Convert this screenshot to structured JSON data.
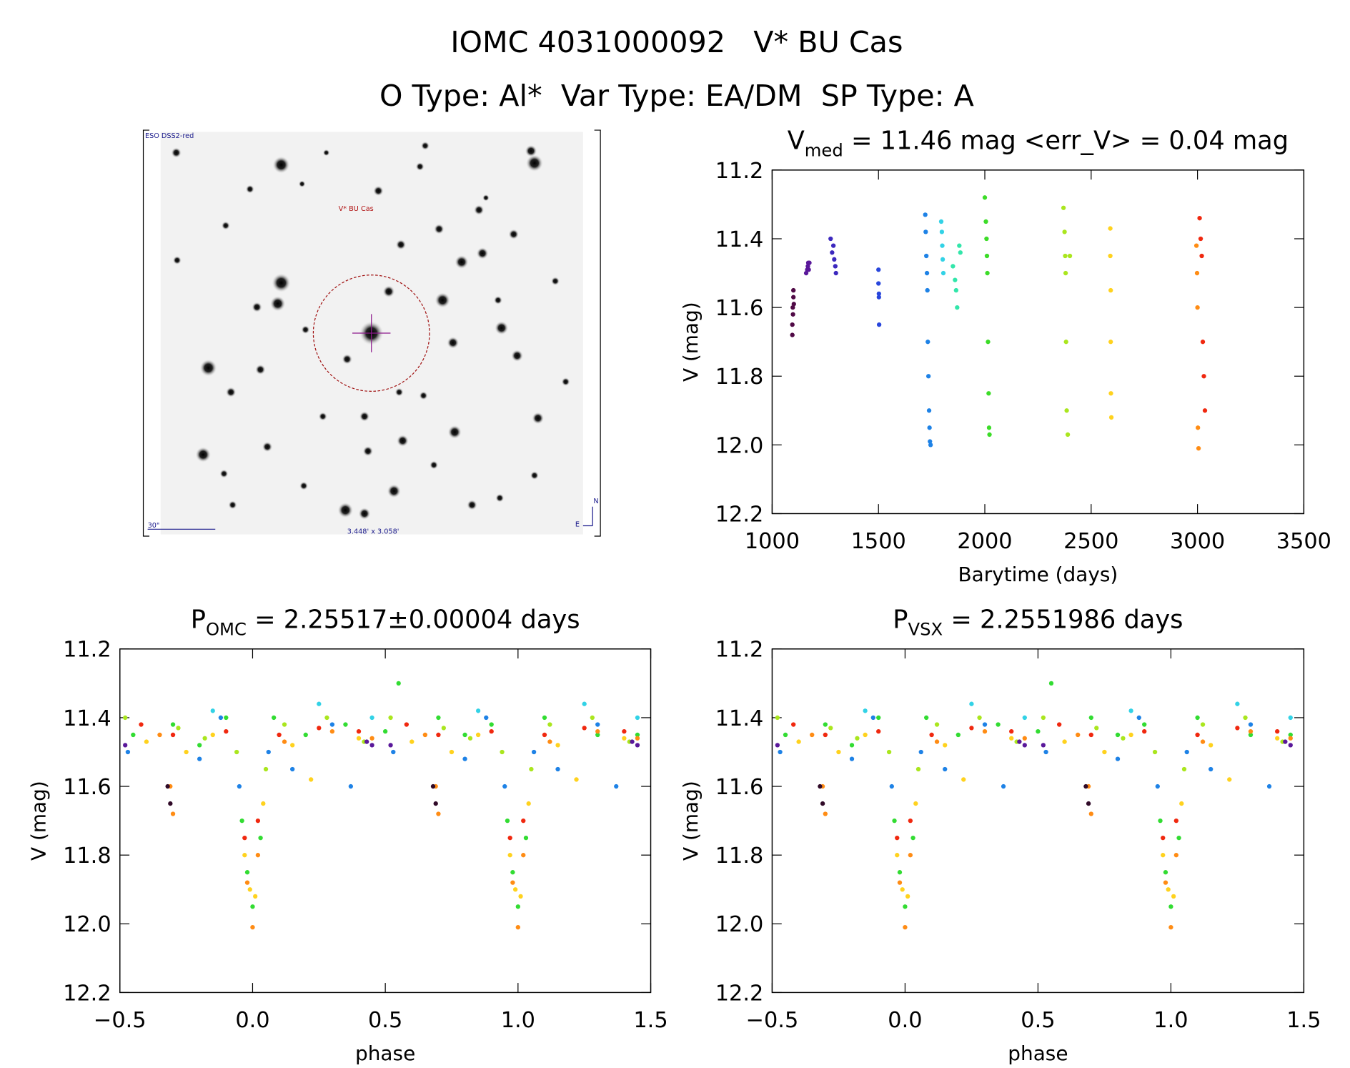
{
  "header": {
    "title": "IOMC 4031000092   V* BU Cas",
    "subtitle": "O Type: Al*  Var Type: EA/DM  SP Type: A"
  },
  "image": {
    "survey": "ESO DSS2-red",
    "target": "V* BU Cas",
    "scale": "30\"",
    "field": "3.448' x 3.058'",
    "north": "N",
    "east": "E"
  },
  "chart_data": [
    {
      "type": "scatter",
      "title": {
        "main": "V",
        "sub": "med",
        "rest": " = 11.46 mag <err_V> = 0.04 mag"
      },
      "xlabel": "Barytime (days)",
      "ylabel": "V (mag)",
      "xlim": [
        1000,
        3500
      ],
      "xticks": [
        1000,
        1500,
        2000,
        2500,
        3000,
        3500
      ],
      "ylim": [
        11.2,
        12.2
      ],
      "y_reversed": true,
      "yticks": [
        11.2,
        11.4,
        11.6,
        11.8,
        {
          "value": 12,
          "label": "12.0"
        },
        12.2
      ],
      "series": [
        {
          "color": "#500a46",
          "x": [
            1095,
            1095,
            1097,
            1098,
            1100,
            1100,
            1102
          ],
          "values": [
            11.68,
            11.65,
            11.6,
            11.62,
            11.57,
            11.55,
            11.59
          ]
        },
        {
          "color": "#5a189a",
          "x": [
            1160,
            1165,
            1168,
            1170,
            1172,
            1175
          ],
          "values": [
            11.5,
            11.49,
            11.48,
            11.47,
            11.49,
            11.47
          ]
        },
        {
          "color": "#3c28be",
          "x": [
            1275,
            1282,
            1288,
            1292,
            1297,
            1300
          ],
          "values": [
            11.4,
            11.44,
            11.42,
            11.46,
            11.48,
            11.5
          ]
        },
        {
          "color": "#2846dc",
          "x": [
            1500,
            1500,
            1502,
            1502,
            1503
          ],
          "values": [
            11.49,
            11.53,
            11.56,
            11.57,
            11.65
          ]
        },
        {
          "color": "#1e82e6",
          "x": [
            1720,
            1722,
            1725,
            1728,
            1730,
            1732,
            1735,
            1738,
            1740,
            1742,
            1745
          ],
          "values": [
            11.33,
            11.38,
            11.45,
            11.5,
            11.55,
            11.7,
            11.8,
            11.9,
            11.95,
            11.99,
            12.0
          ]
        },
        {
          "color": "#32d2e6",
          "x": [
            1795,
            1798,
            1800,
            1802,
            1805
          ],
          "values": [
            11.35,
            11.38,
            11.42,
            11.46,
            11.5
          ]
        },
        {
          "color": "#32e6aa",
          "x": [
            1850,
            1860,
            1865,
            1870,
            1880,
            1885
          ],
          "values": [
            11.48,
            11.52,
            11.55,
            11.6,
            11.42,
            11.44
          ]
        },
        {
          "color": "#3cdc28",
          "x": [
            2000,
            2005,
            2008,
            2010,
            2012,
            2015,
            2018,
            2020,
            2022
          ],
          "values": [
            11.28,
            11.35,
            11.4,
            11.45,
            11.5,
            11.7,
            11.85,
            11.95,
            11.97
          ]
        },
        {
          "color": "#aae61e",
          "x": [
            2370,
            2375,
            2378,
            2380,
            2382,
            2385,
            2390,
            2400
          ],
          "values": [
            11.31,
            11.38,
            11.45,
            11.5,
            11.7,
            11.9,
            11.97,
            11.45
          ]
        },
        {
          "color": "#ffd21e",
          "x": [
            2590,
            2590,
            2592,
            2592,
            2593,
            2595
          ],
          "values": [
            11.37,
            11.45,
            11.55,
            11.7,
            11.85,
            11.92
          ]
        },
        {
          "color": "#ff8c14",
          "x": [
            2995,
            2998,
            3000,
            3002,
            3005
          ],
          "values": [
            11.42,
            11.5,
            11.6,
            11.95,
            12.01
          ]
        },
        {
          "color": "#f0280f",
          "x": [
            3010,
            3015,
            3020,
            3025,
            3030,
            3035
          ],
          "values": [
            11.34,
            11.4,
            11.45,
            11.7,
            11.8,
            11.9
          ]
        }
      ]
    },
    {
      "type": "scatter",
      "title": {
        "main": "P",
        "sub": "OMC",
        "rest": " = 2.25517±0.00004 days"
      },
      "xlabel": "phase",
      "ylabel": "V (mag)",
      "xlim": [
        -0.5,
        1.5
      ],
      "xticks": [
        {
          "value": -0.5,
          "label": "−0.5"
        },
        {
          "value": 0,
          "label": "0.0"
        },
        0.5,
        {
          "value": 1,
          "label": "1.0"
        },
        1.5
      ],
      "ylim": [
        11.2,
        12.2
      ],
      "y_reversed": true,
      "yticks": [
        11.2,
        11.4,
        11.6,
        11.8,
        {
          "value": 12,
          "label": "12.0"
        },
        12.2
      ],
      "series": [
        {
          "color": "#32dc32",
          "x": [
            -0.45,
            -0.3,
            -0.2,
            -0.1,
            -0.04,
            -0.02,
            0.0,
            0.03,
            0.08,
            0.2,
            0.35,
            0.5,
            0.55,
            0.7,
            0.8,
            0.9,
            0.96,
            0.98,
            1.0,
            1.03,
            1.1,
            1.3,
            1.45
          ],
          "values": [
            11.45,
            11.42,
            11.48,
            11.4,
            11.7,
            11.85,
            11.95,
            11.75,
            11.4,
            11.45,
            11.42,
            11.44,
            11.3,
            11.4,
            11.45,
            11.42,
            11.7,
            11.85,
            11.95,
            11.75,
            11.4,
            11.45,
            11.45
          ]
        },
        {
          "color": "#ffd21e",
          "x": [
            -0.4,
            -0.25,
            -0.15,
            -0.03,
            -0.01,
            0.01,
            0.04,
            0.15,
            0.22,
            0.4,
            0.6,
            0.75,
            0.85,
            0.97,
            0.99,
            1.01,
            1.04,
            1.15,
            1.22,
            1.4
          ],
          "values": [
            11.47,
            11.5,
            11.45,
            11.8,
            11.9,
            11.92,
            11.65,
            11.48,
            11.58,
            11.46,
            11.47,
            11.5,
            11.45,
            11.8,
            11.9,
            11.92,
            11.65,
            11.48,
            11.58,
            11.46
          ]
        },
        {
          "color": "#ff8c14",
          "x": [
            -0.35,
            -0.31,
            -0.3,
            -0.02,
            0.0,
            0.02,
            0.12,
            0.3,
            0.45,
            0.65,
            0.69,
            0.7,
            0.98,
            1.0,
            1.02,
            1.12,
            1.3,
            1.45
          ],
          "values": [
            11.45,
            11.6,
            11.68,
            11.88,
            12.01,
            11.8,
            11.47,
            11.44,
            11.46,
            11.45,
            11.6,
            11.68,
            11.88,
            12.01,
            11.8,
            11.47,
            11.44,
            11.46
          ]
        },
        {
          "color": "#f0280f",
          "x": [
            -0.42,
            -0.3,
            -0.1,
            -0.03,
            0.02,
            0.1,
            0.25,
            0.4,
            0.58,
            0.7,
            0.9,
            0.97,
            1.02,
            1.1,
            1.25,
            1.4
          ],
          "values": [
            11.42,
            11.45,
            11.44,
            11.75,
            11.7,
            11.45,
            11.43,
            11.44,
            11.42,
            11.45,
            11.44,
            11.75,
            11.7,
            11.45,
            11.43,
            11.44
          ]
        },
        {
          "color": "#1e82e6",
          "x": [
            -0.47,
            -0.2,
            -0.12,
            -0.05,
            0.06,
            0.15,
            0.3,
            0.37,
            0.53,
            0.8,
            0.88,
            0.95,
            1.06,
            1.15,
            1.3,
            1.37
          ],
          "values": [
            11.5,
            11.52,
            11.4,
            11.6,
            11.5,
            11.55,
            11.42,
            11.6,
            11.5,
            11.52,
            11.4,
            11.6,
            11.5,
            11.55,
            11.42,
            11.6
          ]
        },
        {
          "color": "#aae61e",
          "x": [
            -0.48,
            -0.28,
            -0.18,
            -0.06,
            0.05,
            0.12,
            0.28,
            0.42,
            0.52,
            0.72,
            0.82,
            0.94,
            1.05,
            1.12,
            1.28,
            1.42
          ],
          "values": [
            11.4,
            11.43,
            11.46,
            11.5,
            11.55,
            11.42,
            11.4,
            11.47,
            11.4,
            11.43,
            11.46,
            11.5,
            11.55,
            11.42,
            11.4,
            11.47
          ]
        },
        {
          "color": "#32d2e6",
          "x": [
            -0.15,
            0.25,
            0.45,
            0.85,
            1.25,
            1.45
          ],
          "values": [
            11.38,
            11.36,
            11.4,
            11.38,
            11.36,
            11.4
          ]
        },
        {
          "color": "#5a189a",
          "x": [
            -0.48,
            0.43,
            0.45,
            0.52,
            1.43,
            1.45
          ],
          "values": [
            11.48,
            11.47,
            11.48,
            11.48,
            11.47,
            11.48
          ]
        },
        {
          "color": "#300a28",
          "x": [
            -0.32,
            -0.31,
            0.68,
            0.69
          ],
          "values": [
            11.6,
            11.65,
            11.6,
            11.65
          ]
        }
      ]
    },
    {
      "type": "scatter",
      "title": {
        "main": "P",
        "sub": "VSX",
        "rest": " = 2.2551986 days"
      },
      "xlabel": "phase",
      "ylabel": "V (mag)",
      "xlim": [
        -0.5,
        1.5
      ],
      "xticks": [
        {
          "value": -0.5,
          "label": "−0.5"
        },
        {
          "value": 0,
          "label": "0.0"
        },
        0.5,
        {
          "value": 1,
          "label": "1.0"
        },
        1.5
      ],
      "ylim": [
        11.2,
        12.2
      ],
      "y_reversed": true,
      "yticks": [
        11.2,
        11.4,
        11.6,
        11.8,
        {
          "value": 12,
          "label": "12.0"
        },
        12.2
      ],
      "series": [
        {
          "color": "#32dc32",
          "x": [
            -0.45,
            -0.3,
            -0.2,
            -0.1,
            -0.04,
            -0.02,
            0.0,
            0.03,
            0.08,
            0.2,
            0.35,
            0.5,
            0.55,
            0.7,
            0.8,
            0.9,
            0.96,
            0.98,
            1.0,
            1.03,
            1.1,
            1.3,
            1.45
          ],
          "values": [
            11.45,
            11.42,
            11.48,
            11.4,
            11.7,
            11.85,
            11.95,
            11.75,
            11.4,
            11.45,
            11.42,
            11.44,
            11.3,
            11.4,
            11.45,
            11.42,
            11.7,
            11.85,
            11.95,
            11.75,
            11.4,
            11.45,
            11.45
          ]
        },
        {
          "color": "#ffd21e",
          "x": [
            -0.4,
            -0.25,
            -0.15,
            -0.03,
            -0.01,
            0.01,
            0.04,
            0.15,
            0.22,
            0.4,
            0.6,
            0.75,
            0.85,
            0.97,
            0.99,
            1.01,
            1.04,
            1.15,
            1.22,
            1.4
          ],
          "values": [
            11.47,
            11.5,
            11.45,
            11.8,
            11.9,
            11.92,
            11.65,
            11.48,
            11.58,
            11.46,
            11.47,
            11.5,
            11.45,
            11.8,
            11.9,
            11.92,
            11.65,
            11.48,
            11.58,
            11.46
          ]
        },
        {
          "color": "#ff8c14",
          "x": [
            -0.35,
            -0.31,
            -0.3,
            -0.02,
            0.0,
            0.02,
            0.12,
            0.3,
            0.45,
            0.65,
            0.69,
            0.7,
            0.98,
            1.0,
            1.02,
            1.12,
            1.3,
            1.45
          ],
          "values": [
            11.45,
            11.6,
            11.68,
            11.88,
            12.01,
            11.8,
            11.47,
            11.44,
            11.46,
            11.45,
            11.6,
            11.68,
            11.88,
            12.01,
            11.8,
            11.47,
            11.44,
            11.46
          ]
        },
        {
          "color": "#f0280f",
          "x": [
            -0.42,
            -0.3,
            -0.1,
            -0.03,
            0.02,
            0.1,
            0.25,
            0.4,
            0.58,
            0.7,
            0.9,
            0.97,
            1.02,
            1.1,
            1.25,
            1.4
          ],
          "values": [
            11.42,
            11.45,
            11.44,
            11.75,
            11.7,
            11.45,
            11.43,
            11.44,
            11.42,
            11.45,
            11.44,
            11.75,
            11.7,
            11.45,
            11.43,
            11.44
          ]
        },
        {
          "color": "#1e82e6",
          "x": [
            -0.47,
            -0.2,
            -0.12,
            -0.05,
            0.06,
            0.15,
            0.3,
            0.37,
            0.53,
            0.8,
            0.88,
            0.95,
            1.06,
            1.15,
            1.3,
            1.37
          ],
          "values": [
            11.5,
            11.52,
            11.4,
            11.6,
            11.5,
            11.55,
            11.42,
            11.6,
            11.5,
            11.52,
            11.4,
            11.6,
            11.5,
            11.55,
            11.42,
            11.6
          ]
        },
        {
          "color": "#aae61e",
          "x": [
            -0.48,
            -0.28,
            -0.18,
            -0.06,
            0.05,
            0.12,
            0.28,
            0.42,
            0.52,
            0.72,
            0.82,
            0.94,
            1.05,
            1.12,
            1.28,
            1.42
          ],
          "values": [
            11.4,
            11.43,
            11.46,
            11.5,
            11.55,
            11.42,
            11.4,
            11.47,
            11.4,
            11.43,
            11.46,
            11.5,
            11.55,
            11.42,
            11.4,
            11.47
          ]
        },
        {
          "color": "#32d2e6",
          "x": [
            -0.15,
            0.25,
            0.45,
            0.85,
            1.25,
            1.45
          ],
          "values": [
            11.38,
            11.36,
            11.4,
            11.38,
            11.36,
            11.4
          ]
        },
        {
          "color": "#5a189a",
          "x": [
            -0.48,
            0.43,
            0.45,
            0.52,
            1.43,
            1.45
          ],
          "values": [
            11.48,
            11.47,
            11.48,
            11.48,
            11.47,
            11.48
          ]
        },
        {
          "color": "#300a28",
          "x": [
            -0.32,
            -0.31,
            0.68,
            0.69
          ],
          "values": [
            11.6,
            11.65,
            11.6,
            11.65
          ]
        }
      ]
    }
  ]
}
